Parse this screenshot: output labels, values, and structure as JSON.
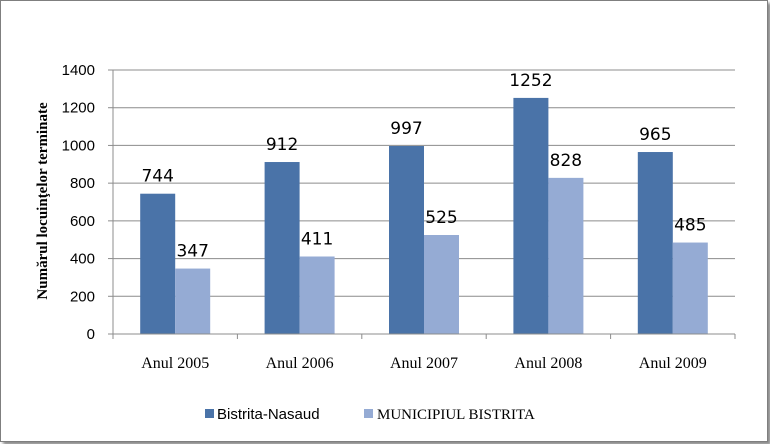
{
  "chart_data": {
    "type": "bar",
    "title": "",
    "xlabel": "",
    "ylabel": "Numărul locuinţelor terminate",
    "categories": [
      "Anul 2005",
      "Anul 2006",
      "Anul 2007",
      "Anul 2008",
      "Anul 2009"
    ],
    "series": [
      {
        "name": "Bistrita-Nasaud",
        "values": [
          744,
          912,
          997,
          1252,
          965
        ],
        "color": "#4a73a8"
      },
      {
        "name": "MUNICIPIUL BISTRITA",
        "values": [
          347,
          411,
          525,
          828,
          485
        ],
        "color": "#95abd4"
      }
    ],
    "ylim": [
      0,
      1400
    ],
    "yticks": [
      0,
      200,
      400,
      600,
      800,
      1000,
      1200,
      1400
    ],
    "grid": true,
    "legend_position": "bottom"
  }
}
